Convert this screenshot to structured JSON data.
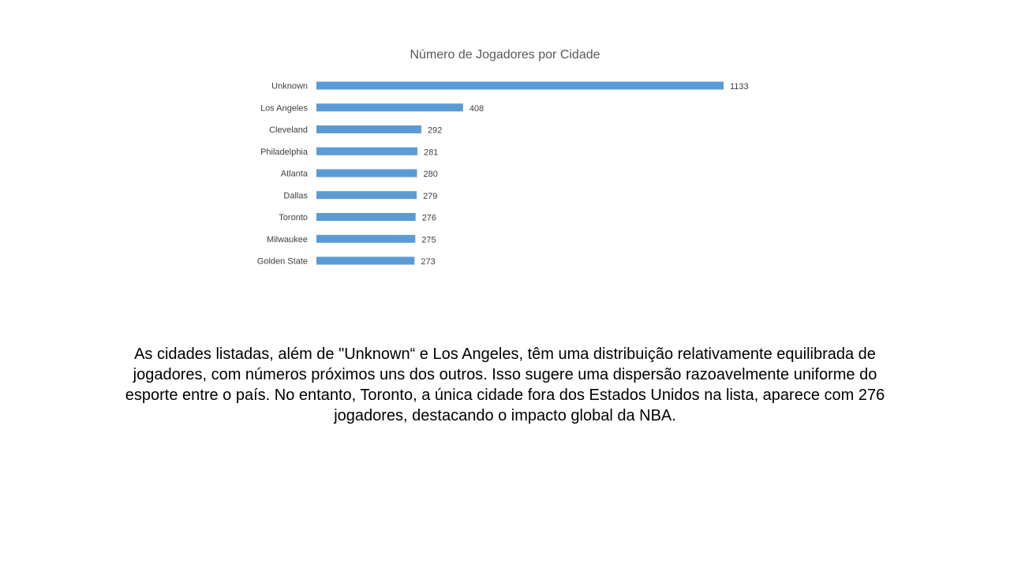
{
  "chart_data": {
    "type": "bar",
    "orientation": "horizontal",
    "title": "Número de Jogadores por Cidade",
    "categories": [
      "Unknown",
      "Los Angeles",
      "Cleveland",
      "Philadelphia",
      "Atlanta",
      "Dallas",
      "Toronto",
      "Milwaukee",
      "Golden State"
    ],
    "values": [
      1133,
      408,
      292,
      281,
      280,
      279,
      276,
      275,
      273
    ],
    "bar_color": "#5B9BD5",
    "xlabel": "",
    "ylabel": "",
    "xlim": [
      0,
      1133
    ],
    "grid": false,
    "legend": "none",
    "data_labels": true
  },
  "caption": "As cidades listadas, além de \"Unknown“  e Los Angeles, têm uma distribuição relativamente equilibrada de jogadores, com números próximos uns dos outros. Isso sugere uma dispersão razoavelmente uniforme do esporte entre o país. No entanto, Toronto, a única cidade fora dos Estados Unidos na lista, aparece com 276 jogadores, destacando o impacto global da NBA."
}
